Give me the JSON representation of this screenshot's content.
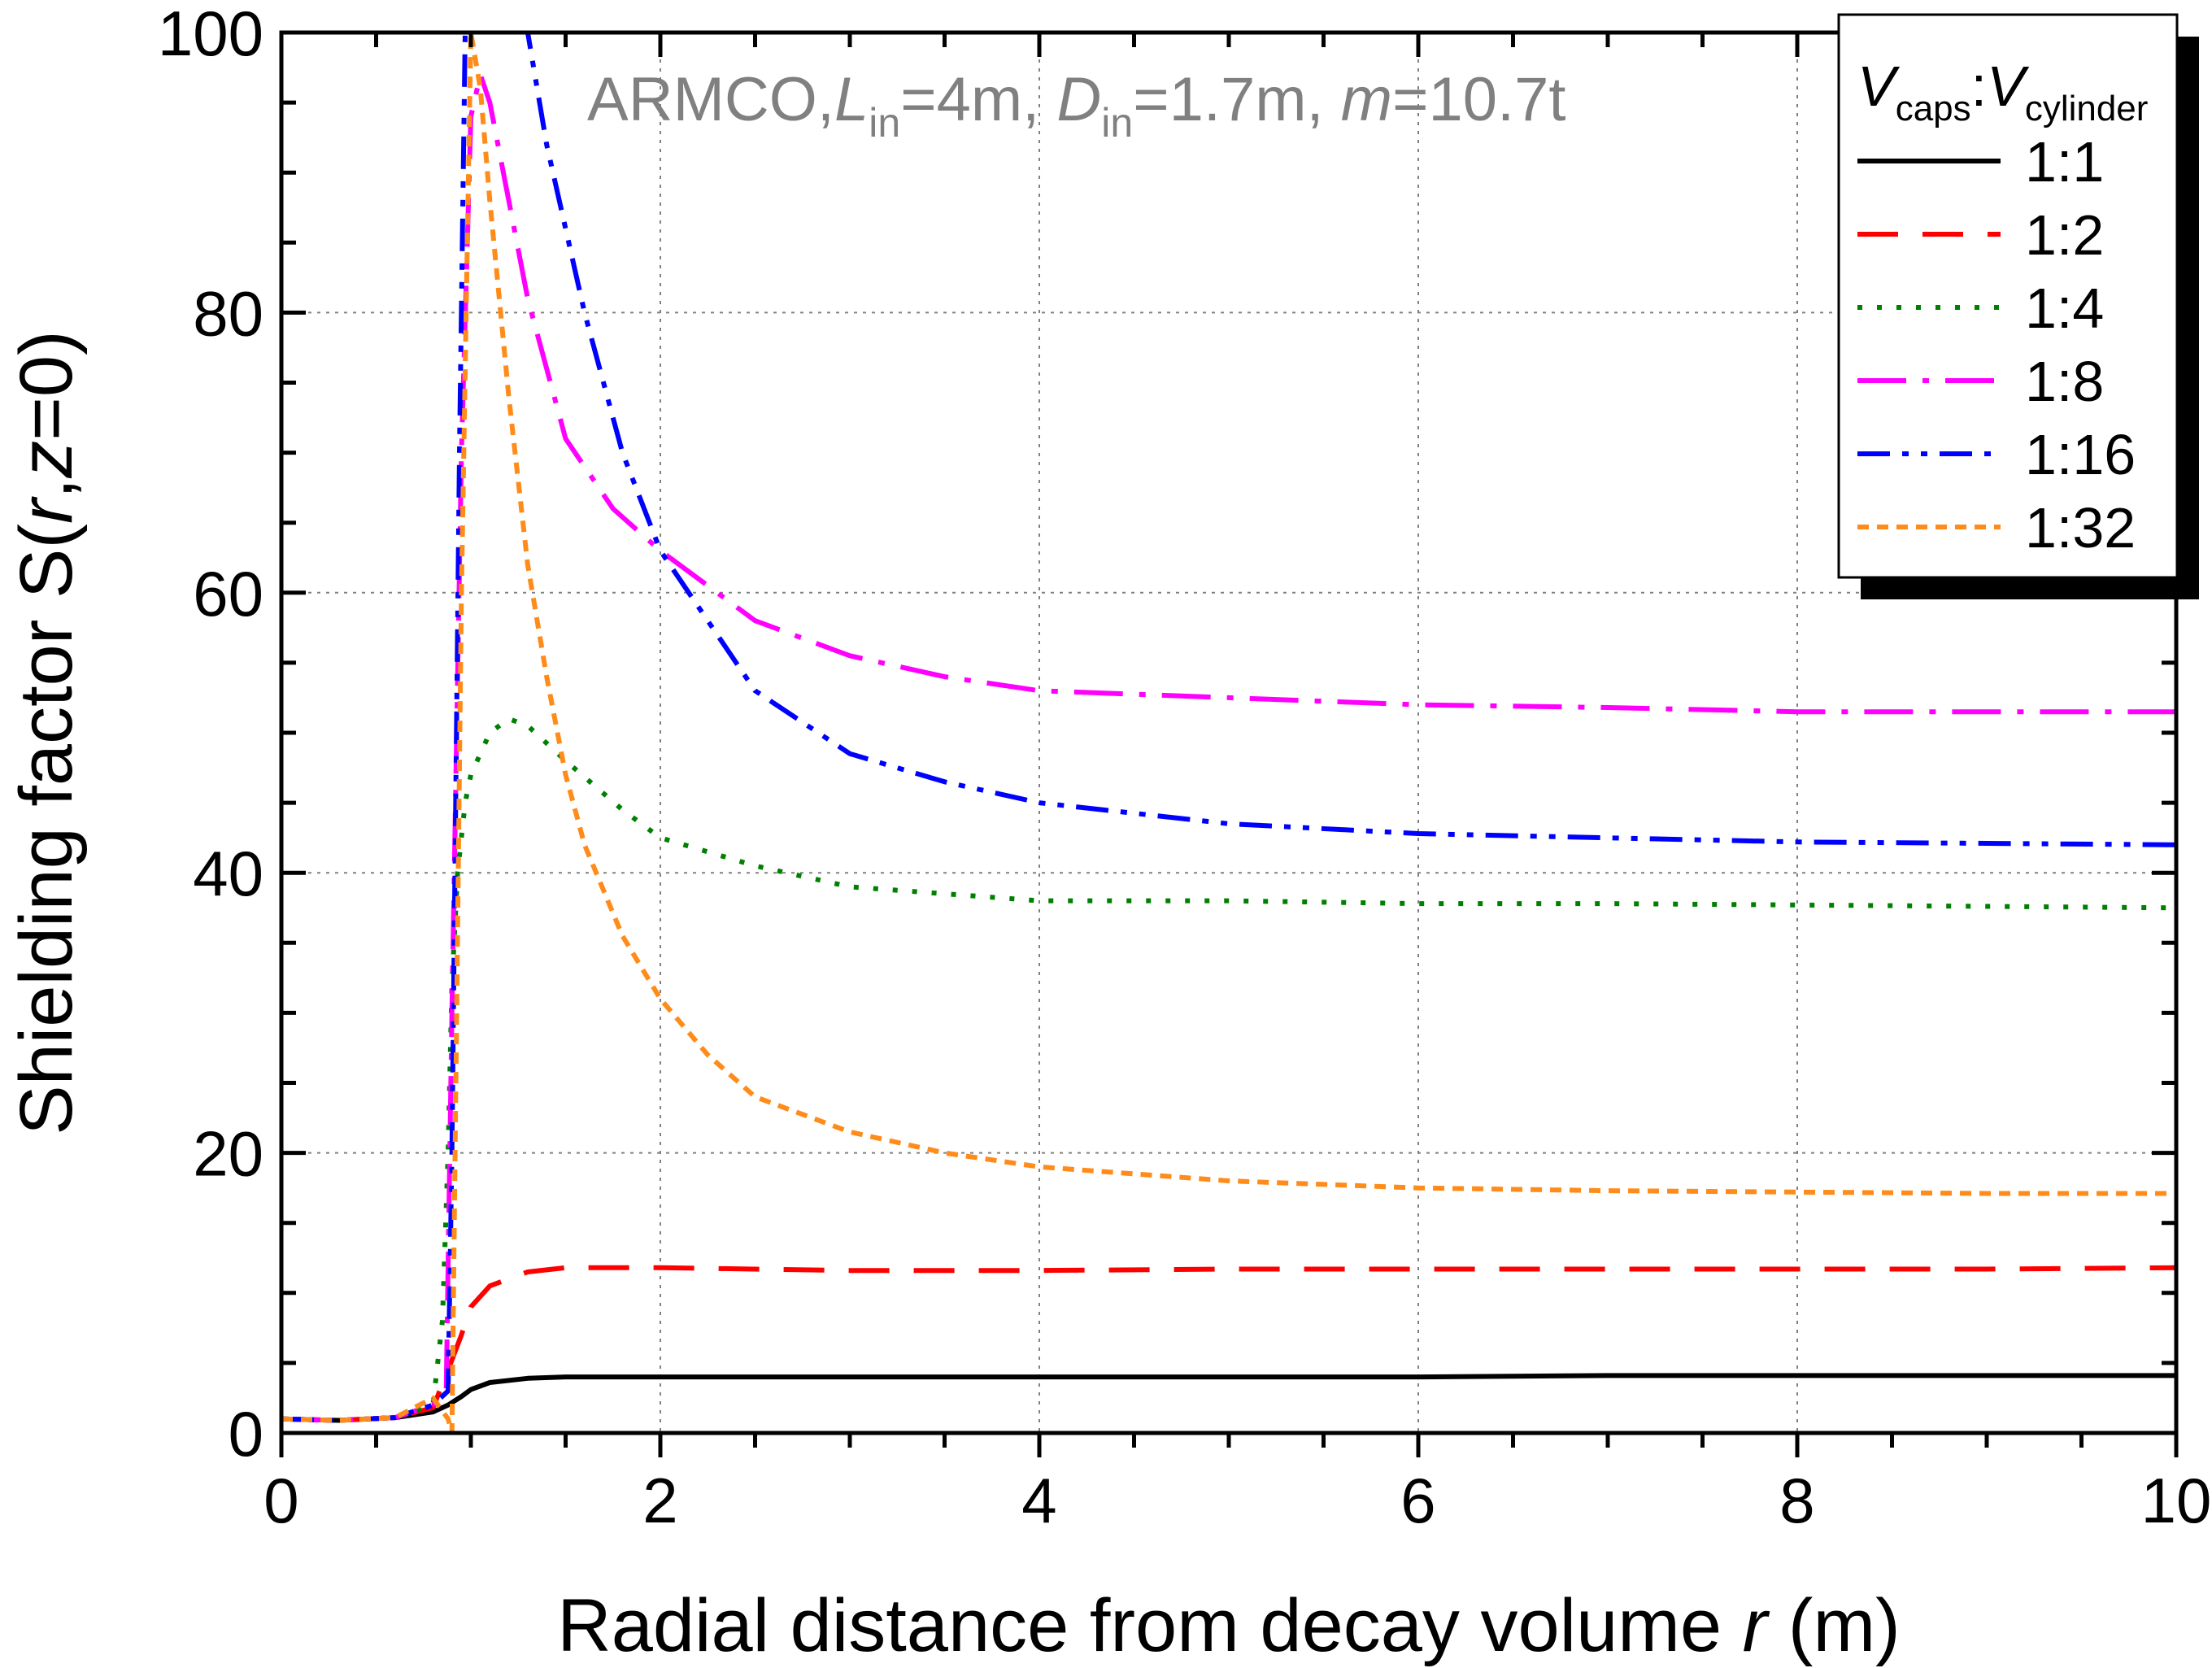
{
  "chart_data": {
    "type": "line",
    "xlabel": "Radial distance from decay volume r (m)",
    "ylabel": "Shielding factor S(r,z=0)",
    "xlabel_parts": {
      "pre": "Radial distance from decay volume ",
      "var": "r",
      "post": " (m)"
    },
    "ylabel_parts": {
      "pre": "Shielding factor S(",
      "var1": "r",
      "mid": ",",
      "var2": "z",
      "post": "=0)"
    },
    "annotation": "ARMCO,Lin=4m, Din=1.7m, m=10.7t",
    "annotation_parts": {
      "p1": "ARMCO,",
      "L": "L",
      "Lsub": "in",
      "p2": "=4m, ",
      "D": "D",
      "Dsub": "in",
      "p3": "=1.7m, ",
      "m": "m",
      "p4": "=10.7t"
    },
    "legend_title": "Vcaps:Vcylinder",
    "legend_title_parts": {
      "v1": "V",
      "s1": "caps",
      "sep": ":",
      "v2": "V",
      "s2": "cylinder"
    },
    "legend_position": "top-right",
    "xlim": [
      0,
      10
    ],
    "ylim": [
      0,
      100
    ],
    "xticks": [
      0,
      2,
      4,
      6,
      8,
      10
    ],
    "yticks": [
      0,
      20,
      40,
      60,
      80,
      100
    ],
    "grid": true,
    "series": [
      {
        "name": "1:1",
        "color": "#000000",
        "dash": "none",
        "x": [
          0,
          0.3,
          0.6,
          0.8,
          0.88,
          0.95,
          1.0,
          1.1,
          1.3,
          1.5,
          2,
          3,
          4,
          5,
          6,
          7,
          8,
          9,
          10
        ],
        "y": [
          1.0,
          0.9,
          1.1,
          1.5,
          2.0,
          2.6,
          3.1,
          3.6,
          3.9,
          4.0,
          4.0,
          4.0,
          4.0,
          4.0,
          4.0,
          4.1,
          4.1,
          4.1,
          4.1
        ]
      },
      {
        "name": "1:2",
        "color": "#ff0000",
        "dash": "50,30",
        "x": [
          0,
          0.3,
          0.6,
          0.8,
          0.88,
          0.95,
          1.0,
          1.1,
          1.3,
          1.5,
          2,
          3,
          4,
          5,
          6,
          7,
          8,
          9,
          10
        ],
        "y": [
          1.0,
          0.9,
          1.1,
          1.8,
          4.5,
          7.0,
          9.0,
          10.5,
          11.5,
          11.8,
          11.8,
          11.6,
          11.6,
          11.7,
          11.7,
          11.7,
          11.7,
          11.7,
          11.8
        ]
      },
      {
        "name": "1:4",
        "color": "#008000",
        "dash": "6,18",
        "x": [
          0,
          0.3,
          0.6,
          0.8,
          0.85,
          0.88,
          0.9,
          0.93,
          0.97,
          1.0,
          1.1,
          1.2,
          1.3,
          1.5,
          1.8,
          2,
          2.5,
          3,
          4,
          5,
          6,
          7,
          8,
          9,
          10
        ],
        "y": [
          1.0,
          0.9,
          1.1,
          2.0,
          8.0,
          20.0,
          32.0,
          40.0,
          45.0,
          47.0,
          50.0,
          51.0,
          50.5,
          48.0,
          44.5,
          42.5,
          40.5,
          39.0,
          38.0,
          38.0,
          37.8,
          37.8,
          37.7,
          37.6,
          37.5
        ]
      },
      {
        "name": "1:8",
        "color": "#ff00ff",
        "dash": "60,20,8,20",
        "x": [
          0,
          0.3,
          0.6,
          0.8,
          0.87,
          0.9,
          0.95,
          1.0,
          1.05,
          1.1,
          1.2,
          1.3,
          1.5,
          1.75,
          2,
          2.5,
          3,
          3.5,
          4,
          5,
          6,
          7,
          8,
          9,
          10
        ],
        "y": [
          1.0,
          0.9,
          1.1,
          2.0,
          3.0,
          30.0,
          70.0,
          94.0,
          97.0,
          95.0,
          88.0,
          81.0,
          71.0,
          66.0,
          63.0,
          58.0,
          55.5,
          54.0,
          53.0,
          52.5,
          52.0,
          51.8,
          51.5,
          51.5,
          51.5
        ]
      },
      {
        "name": "1:16",
        "color": "#0000ff",
        "dash": "40,15,8,15,8,15",
        "x": [
          0,
          0.3,
          0.6,
          0.8,
          0.88,
          0.9,
          0.94,
          0.97,
          1.0,
          1.1,
          1.2,
          1.3,
          1.4,
          1.6,
          1.8,
          2,
          2.5,
          3,
          3.5,
          4,
          5,
          6,
          7,
          8,
          9,
          10
        ],
        "y": [
          1.0,
          0.9,
          1.1,
          2.0,
          3.0,
          20.0,
          70.0,
          100.0,
          105.0,
          110.0,
          108.0,
          100.0,
          92.0,
          80.0,
          70.0,
          63.0,
          53.0,
          48.5,
          46.5,
          45.0,
          43.5,
          42.8,
          42.5,
          42.2,
          42.1,
          42.0
        ]
      },
      {
        "name": "1:32",
        "color": "#ff8c1a",
        "dash": "14,10",
        "x": [
          0,
          0.3,
          0.6,
          0.8,
          0.88,
          0.9,
          0.95,
          1.0,
          1.05,
          1.1,
          1.2,
          1.3,
          1.4,
          1.5,
          1.6,
          1.8,
          2,
          2.25,
          2.5,
          3,
          3.5,
          4,
          5,
          6,
          7,
          8,
          9,
          10
        ],
        "y": [
          1.0,
          0.9,
          1.1,
          2.5,
          1.0,
          0.0,
          60.0,
          100.0,
          96.0,
          88.0,
          74.0,
          62.0,
          54.0,
          47.0,
          42.0,
          35.5,
          31.0,
          27.0,
          24.0,
          21.5,
          20.0,
          19.0,
          18.0,
          17.5,
          17.3,
          17.2,
          17.1,
          17.1
        ]
      }
    ]
  }
}
